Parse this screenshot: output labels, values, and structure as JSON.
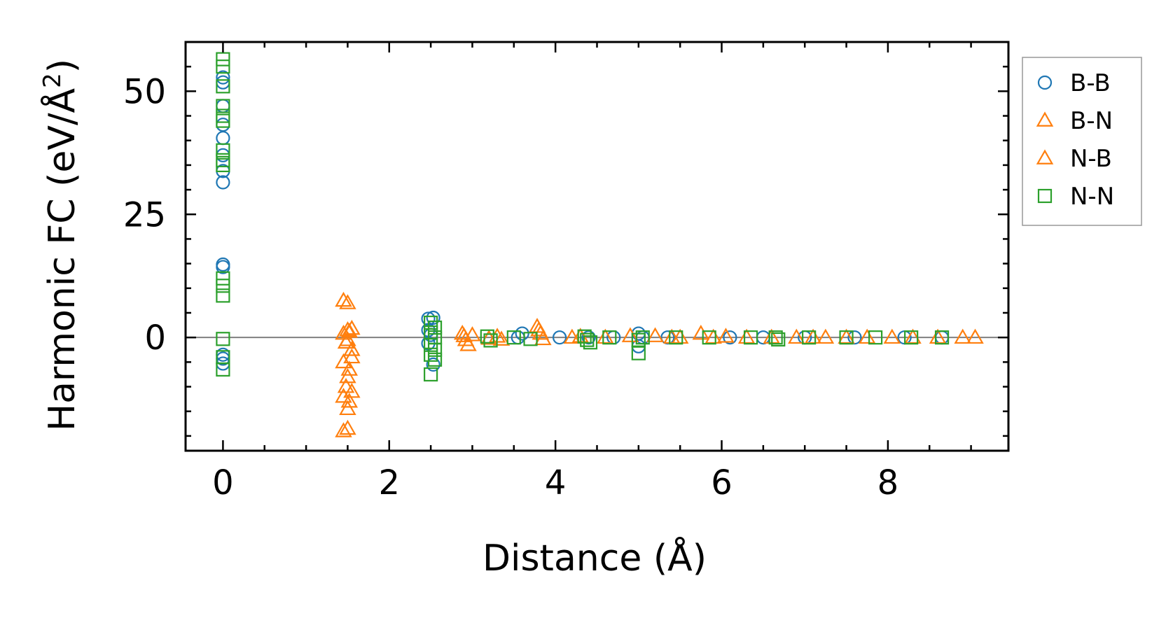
{
  "chart_data": {
    "type": "scatter",
    "title": "",
    "xlabel": "Distance (Å)",
    "ylabel_main": "Harmonic FC (eV/Å",
    "ylabel_sup": "2",
    "ylabel_close": ")",
    "xlim": [
      -0.45,
      9.45
    ],
    "ylim": [
      -23,
      60
    ],
    "xticks": [
      0,
      2,
      4,
      6,
      8
    ],
    "xtick_labels": [
      "0",
      "2",
      "4",
      "6",
      "8"
    ],
    "yticks": [
      0,
      25,
      50
    ],
    "ytick_labels": [
      "0",
      "25",
      "50"
    ],
    "zero_line": true,
    "grid": false,
    "legend_position": "outside-right",
    "series": [
      {
        "name": "B-B",
        "marker": "circle",
        "color": "#1f77b4",
        "points": [
          [
            0,
            52.8
          ],
          [
            0,
            51.8
          ],
          [
            0,
            47
          ],
          [
            0,
            43.2
          ],
          [
            0,
            40.5
          ],
          [
            0,
            37
          ],
          [
            0,
            33.8
          ],
          [
            0,
            31.5
          ],
          [
            0,
            14.8
          ],
          [
            0,
            14.3
          ],
          [
            0,
            -3.5
          ],
          [
            0,
            -4.3
          ],
          [
            0,
            -5.3
          ],
          [
            2.47,
            3.8
          ],
          [
            2.53,
            4.0
          ],
          [
            2.47,
            1.5
          ],
          [
            2.5,
            0.5
          ],
          [
            2.47,
            -1.2
          ],
          [
            2.53,
            -5.5
          ],
          [
            3.6,
            0.8
          ],
          [
            3.55,
            0
          ],
          [
            4.05,
            0
          ],
          [
            4.4,
            0
          ],
          [
            4.7,
            0
          ],
          [
            5.0,
            0.8
          ],
          [
            5.0,
            -1.8
          ],
          [
            5.05,
            0
          ],
          [
            5.35,
            0
          ],
          [
            6.1,
            0
          ],
          [
            6.5,
            0
          ],
          [
            7.0,
            0
          ],
          [
            7.6,
            0
          ],
          [
            8.2,
            0
          ],
          [
            8.65,
            0
          ]
        ]
      },
      {
        "name": "B-N",
        "marker": "triangle",
        "color": "#ff7f0e",
        "points": [
          [
            1.45,
            7.5
          ],
          [
            1.5,
            1.5
          ],
          [
            1.55,
            1.8
          ],
          [
            1.45,
            0.8
          ],
          [
            1.5,
            -0.5
          ],
          [
            1.55,
            -2.5
          ],
          [
            1.45,
            -5
          ],
          [
            1.5,
            -8
          ],
          [
            1.55,
            -11
          ],
          [
            1.45,
            -12
          ],
          [
            1.5,
            -14.5
          ],
          [
            1.45,
            -19
          ],
          [
            2.88,
            0.8
          ],
          [
            2.92,
            -0.5
          ],
          [
            2.95,
            -1.5
          ],
          [
            3.0,
            0.5
          ],
          [
            3.3,
            0.2
          ],
          [
            3.35,
            -0.4
          ],
          [
            3.78,
            2.2
          ],
          [
            3.82,
            0.8
          ],
          [
            3.85,
            -0.3
          ],
          [
            4.3,
            0.2
          ],
          [
            4.6,
            0
          ],
          [
            5.2,
            0.3
          ],
          [
            5.5,
            0
          ],
          [
            5.75,
            0.8
          ],
          [
            6.05,
            0.2
          ],
          [
            6.3,
            0
          ],
          [
            6.9,
            0
          ],
          [
            7.25,
            0
          ],
          [
            7.75,
            0
          ],
          [
            8.3,
            0
          ],
          [
            8.9,
            0
          ],
          [
            9.05,
            0
          ]
        ]
      },
      {
        "name": "N-B",
        "marker": "triangle",
        "color": "#ff7f0e",
        "points": [
          [
            1.5,
            7.0
          ],
          [
            1.52,
            1.2
          ],
          [
            1.48,
            -1.0
          ],
          [
            1.55,
            -4
          ],
          [
            1.52,
            -6.5
          ],
          [
            1.48,
            -10
          ],
          [
            1.52,
            -13
          ],
          [
            1.5,
            -18.5
          ],
          [
            2.9,
            0.3
          ],
          [
            3.2,
            -0.2
          ],
          [
            3.8,
            1.5
          ],
          [
            4.2,
            0
          ],
          [
            4.9,
            0.3
          ],
          [
            5.4,
            0
          ],
          [
            5.9,
            0
          ],
          [
            6.6,
            0
          ],
          [
            7.1,
            0
          ],
          [
            7.5,
            0
          ],
          [
            8.05,
            0
          ],
          [
            8.6,
            0
          ]
        ]
      },
      {
        "name": "N-N",
        "marker": "square",
        "color": "#2ca02c",
        "points": [
          [
            0,
            56.5
          ],
          [
            0,
            55
          ],
          [
            0,
            51
          ],
          [
            0,
            47
          ],
          [
            0,
            45
          ],
          [
            0,
            44
          ],
          [
            0,
            38
          ],
          [
            0,
            36
          ],
          [
            0,
            35
          ],
          [
            0,
            12
          ],
          [
            0,
            10.5
          ],
          [
            0,
            8.5
          ],
          [
            0,
            -0.3
          ],
          [
            0,
            -4
          ],
          [
            0,
            -6.5
          ],
          [
            2.5,
            3.0
          ],
          [
            2.55,
            2.0
          ],
          [
            2.5,
            1.0
          ],
          [
            2.55,
            0
          ],
          [
            2.5,
            -1.5
          ],
          [
            2.55,
            -2.5
          ],
          [
            2.5,
            -3.5
          ],
          [
            2.55,
            -4.5
          ],
          [
            2.5,
            -7.5
          ],
          [
            3.18,
            0.2
          ],
          [
            3.22,
            -0.6
          ],
          [
            3.5,
            0
          ],
          [
            3.7,
            -0.3
          ],
          [
            4.35,
            0.2
          ],
          [
            4.38,
            -0.5
          ],
          [
            4.42,
            -1.0
          ],
          [
            4.65,
            0
          ],
          [
            5.0,
            -0.5
          ],
          [
            5.05,
            0
          ],
          [
            5.0,
            -3.2
          ],
          [
            5.45,
            0
          ],
          [
            5.85,
            0
          ],
          [
            6.35,
            0
          ],
          [
            6.65,
            0
          ],
          [
            6.68,
            -0.4
          ],
          [
            7.05,
            0
          ],
          [
            7.5,
            0
          ],
          [
            7.85,
            0
          ],
          [
            8.28,
            0
          ],
          [
            8.65,
            0
          ]
        ]
      }
    ]
  }
}
